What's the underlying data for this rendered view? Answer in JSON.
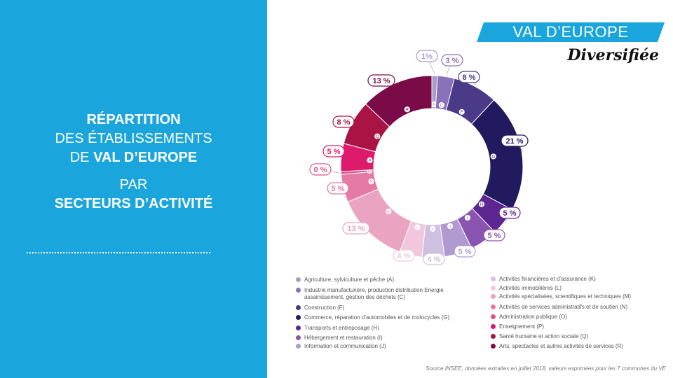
{
  "title": {
    "line1": "RÉPARTITION",
    "line2": "DES ÉTABLISSEMENTS",
    "line3_prefix": "DE ",
    "line3_bold": "VAL D’EUROPE",
    "line4": "PAR",
    "line5": "SECTEURS D’ACTIVITÉ"
  },
  "brand": {
    "name": "VAL D’EUROPE",
    "tagline": "Diversifiée"
  },
  "colors": {
    "left_panel": "#1aa6dd"
  },
  "chart_data": {
    "type": "pie",
    "slices": [
      {
        "code": "A",
        "label": "Agriculture, sylviculture et pêche (A)",
        "value": 1,
        "value_label": "1%",
        "color": "#a89cc8"
      },
      {
        "code": "C",
        "label": "Industrie manufacturière, production distribution Energie assainissement, gestion des déchets (C)",
        "value": 3,
        "value_label": "3 %",
        "color": "#8a72b8"
      },
      {
        "code": "F",
        "label": "Construction (F)",
        "value": 8,
        "value_label": "8 %",
        "color": "#4a3a87"
      },
      {
        "code": "G",
        "label": "Commerce, réparation d’automobiles et de motocycles (G)",
        "value": 21,
        "value_label": "21 %",
        "color": "#221a5f"
      },
      {
        "code": "H",
        "label": "Transports et entreposage (H)",
        "value": 5,
        "value_label": "5 %",
        "color": "#5d2690"
      },
      {
        "code": "I",
        "label": "Hébergement et restauration (I)",
        "value": 5,
        "value_label": "5 %",
        "color": "#8a55b0"
      },
      {
        "code": "J",
        "label": "Information et communication (J)",
        "value": 5,
        "value_label": "5 %",
        "color": "#b09ad0"
      },
      {
        "code": "K",
        "label": "Activités financières et d’assurance (K)",
        "value": 4,
        "value_label": "4 %",
        "color": "#cfc0e0"
      },
      {
        "code": "L",
        "label": "Activités immobilières (L)",
        "value": 4,
        "value_label": "4 %",
        "color": "#f2c6dc"
      },
      {
        "code": "M",
        "label": "Activités spécialisées, scientifiques et techniques (M)",
        "value": 13,
        "value_label": "13 %",
        "color": "#eba3c2"
      },
      {
        "code": "N",
        "label": "Activités de services administratifs et de soutien (N)",
        "value": 5,
        "value_label": "5 %",
        "color": "#e67aa6"
      },
      {
        "code": "O",
        "label": "Administration publique (O)",
        "value": 0.5,
        "value_label": "0 %",
        "color": "#e0508c"
      },
      {
        "code": "P",
        "label": "Enseignement (P)",
        "value": 5,
        "value_label": "5 %",
        "color": "#de1a6c"
      },
      {
        "code": "Q",
        "label": "Santé humaine et action sociale (Q)",
        "value": 8,
        "value_label": "8 %",
        "color": "#a91445"
      },
      {
        "code": "R",
        "label": "Arts, spectacles et autres activités de services (R)",
        "value": 13,
        "value_label": "13 %",
        "color": "#7b0a48"
      }
    ],
    "legend_left": [
      "A",
      "C",
      "F",
      "G",
      "H",
      "I",
      "J"
    ],
    "legend_right": [
      "K",
      "L",
      "M",
      "N",
      "O",
      "P",
      "Q",
      "R"
    ]
  },
  "source": "Source INSEE, données extraites en juillet 2018, valeurs exprimées pour les 7 communes du VE"
}
